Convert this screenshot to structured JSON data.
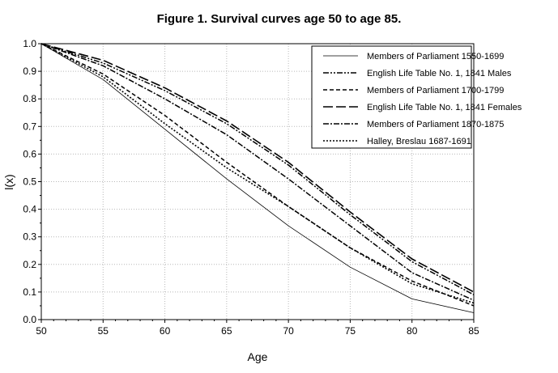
{
  "chart_data": {
    "type": "line",
    "title": "Figure 1. Survival curves age 50 to age 85.",
    "xlabel": "Age",
    "ylabel": "l(x)",
    "xlim": [
      50,
      85
    ],
    "ylim": [
      0.0,
      1.0
    ],
    "xticks": [
      50,
      55,
      60,
      65,
      70,
      75,
      80,
      85
    ],
    "yticks": [
      0.0,
      0.1,
      0.2,
      0.3,
      0.4,
      0.5,
      0.6,
      0.7,
      0.8,
      0.9,
      1.0
    ],
    "grid": true,
    "legend_position": "top-right",
    "x": [
      50,
      55,
      60,
      65,
      70,
      75,
      80,
      85
    ],
    "series": [
      {
        "name": "Members of Parliament 1550-1699",
        "dash": "solid",
        "values": [
          1.0,
          0.87,
          0.69,
          0.51,
          0.34,
          0.19,
          0.075,
          0.025
        ]
      },
      {
        "name": "English Life Table No. 1, 1841 Males",
        "dash": "dash-dot-dot",
        "values": [
          1.0,
          0.93,
          0.83,
          0.71,
          0.56,
          0.38,
          0.21,
          0.09
        ]
      },
      {
        "name": "Members of Parliament 1700-1799",
        "dash": "dash",
        "values": [
          1.0,
          0.89,
          0.74,
          0.57,
          0.41,
          0.26,
          0.14,
          0.05
        ]
      },
      {
        "name": "English Life Table No. 1, 1841 Females",
        "dash": "long-dash",
        "values": [
          1.0,
          0.94,
          0.84,
          0.72,
          0.57,
          0.39,
          0.22,
          0.1
        ]
      },
      {
        "name": "Members of Parliament 1870-1875",
        "dash": "dash-dot",
        "values": [
          1.0,
          0.92,
          0.8,
          0.67,
          0.51,
          0.34,
          0.17,
          0.07
        ]
      },
      {
        "name": "Halley, Breslau 1687-1691",
        "dash": "dot",
        "values": [
          1.0,
          0.88,
          0.71,
          0.55,
          0.41,
          0.26,
          0.13,
          0.06
        ]
      }
    ]
  }
}
